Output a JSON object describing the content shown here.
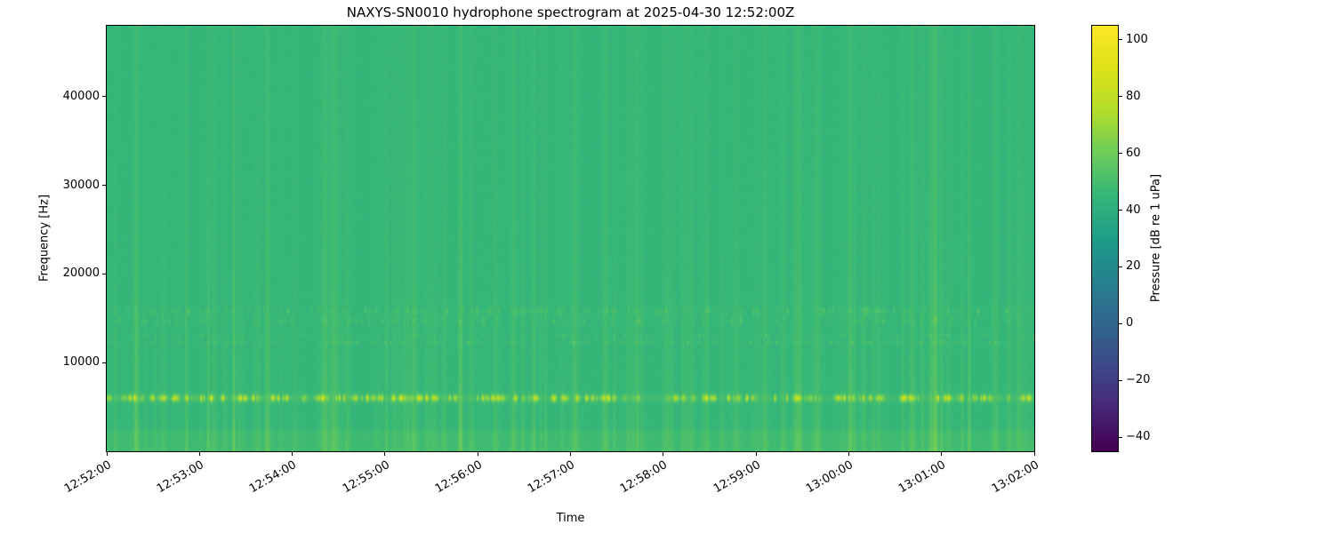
{
  "chart_data": {
    "type": "heatmap",
    "title": "NAXYS-SN0010 hydrophone spectrogram at 2025-04-30 12:52:00Z",
    "xlabel": "Time",
    "ylabel": "Frequency [Hz]",
    "x_tick_labels": [
      "12:52:00",
      "12:53:00",
      "12:54:00",
      "12:55:00",
      "12:56:00",
      "12:57:00",
      "12:58:00",
      "12:59:00",
      "13:00:00",
      "13:01:00",
      "13:02:00"
    ],
    "x_span_seconds": 600,
    "y_ticks": [
      {
        "value": 10000,
        "label": "10000"
      },
      {
        "value": 20000,
        "label": "20000"
      },
      {
        "value": 30000,
        "label": "30000"
      },
      {
        "value": 40000,
        "label": "40000"
      }
    ],
    "freq_range_hz": [
      0,
      48000
    ],
    "grid": false,
    "colorbar": {
      "label": "Pressure [dB re 1 uPa]",
      "colormap": "viridis",
      "vmin": -45,
      "vmax": 105,
      "ticks": [
        {
          "value": 100,
          "label": "100"
        },
        {
          "value": 80,
          "label": "80"
        },
        {
          "value": 60,
          "label": "60"
        },
        {
          "value": 40,
          "label": "40"
        },
        {
          "value": 20,
          "label": "20"
        },
        {
          "value": 0,
          "label": "0"
        },
        {
          "value": -20,
          "label": "−20"
        },
        {
          "value": -40,
          "label": "−40"
        }
      ]
    },
    "colormap_stops": [
      [
        0.0,
        "#440154"
      ],
      [
        0.1,
        "#482878"
      ],
      [
        0.2,
        "#3e4a89"
      ],
      [
        0.3,
        "#31688e"
      ],
      [
        0.4,
        "#26828e"
      ],
      [
        0.5,
        "#1f9e89"
      ],
      [
        0.6,
        "#35b779"
      ],
      [
        0.7,
        "#6dcd59"
      ],
      [
        0.8,
        "#b4de2c"
      ],
      [
        0.9,
        "#dfe318"
      ],
      [
        1.0,
        "#fde725"
      ]
    ],
    "background_db": 45,
    "features": {
      "tonal_band": {
        "center_hz": 6000,
        "sigma_hz": 400,
        "peak_db": 92,
        "character": "bright intermittent narrowband line, yellow-green blobs"
      },
      "speckle_bands": [
        {
          "center_hz": 12300,
          "sigma_hz": 220,
          "max_excess_db": 18
        },
        {
          "center_hz": 13100,
          "sigma_hz": 200,
          "max_excess_db": 13
        },
        {
          "center_hz": 14700,
          "sigma_hz": 450,
          "max_excess_db": 15
        },
        {
          "center_hz": 15800,
          "sigma_hz": 420,
          "max_excess_db": 17
        }
      ],
      "broadband_transients": "faint vertical stripes across full band, strongest below 20 kHz",
      "low_band": {
        "range_hz": [
          0,
          1800
        ],
        "boost_db": 3
      }
    }
  }
}
